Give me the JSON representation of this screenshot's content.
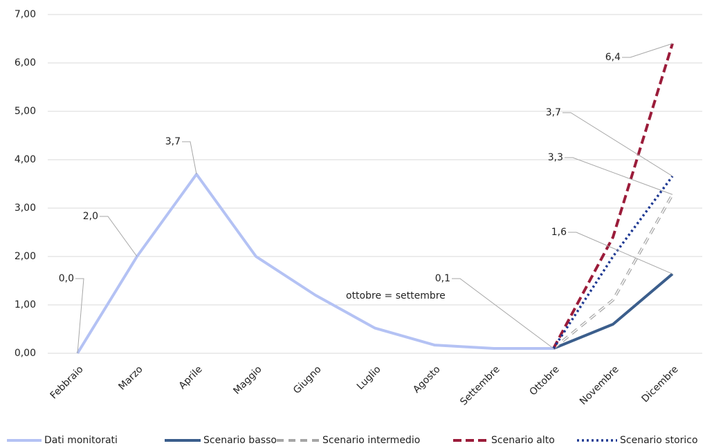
{
  "chart_data": {
    "type": "line",
    "categories": [
      "Febbraio",
      "Marzo",
      "Aprile",
      "Maggio",
      "Giugno",
      "Luglio",
      "Agosto",
      "Settembre",
      "Ottobre",
      "Novembre",
      "Dicembre"
    ],
    "series": [
      {
        "name": "Dati monitorati",
        "color": "#b4c2f4",
        "style": "solid",
        "values": [
          0.0,
          2.0,
          3.7,
          2.0,
          1.2,
          0.52,
          0.17,
          0.1,
          0.1,
          null,
          null
        ],
        "value_labels": [
          "0,0",
          "2,0",
          "3,7",
          null,
          null,
          null,
          null,
          null,
          "0,1",
          null,
          null
        ]
      },
      {
        "name": "Scenario basso",
        "color": "#3b5e8c",
        "style": "solid",
        "values": [
          null,
          null,
          null,
          null,
          null,
          null,
          null,
          null,
          0.1,
          0.6,
          1.64
        ],
        "value_labels": [
          null,
          null,
          null,
          null,
          null,
          null,
          null,
          null,
          null,
          null,
          "1,6"
        ]
      },
      {
        "name": "Scenario intermedio",
        "color": "#a6a6a6",
        "style": "dashed-light",
        "values": [
          null,
          null,
          null,
          null,
          null,
          null,
          null,
          null,
          0.1,
          1.1,
          3.28
        ],
        "value_labels": [
          null,
          null,
          null,
          null,
          null,
          null,
          null,
          null,
          null,
          null,
          "3,3"
        ]
      },
      {
        "name": "Scenario alto",
        "color": "#9b1c3a",
        "style": "dashed",
        "values": [
          null,
          null,
          null,
          null,
          null,
          null,
          null,
          null,
          0.1,
          2.4,
          6.4
        ],
        "value_labels": [
          null,
          null,
          null,
          null,
          null,
          null,
          null,
          null,
          null,
          null,
          "6,4"
        ]
      },
      {
        "name": "Scenario storico",
        "color": "#1f3a93",
        "style": "dotted",
        "values": [
          null,
          null,
          null,
          null,
          null,
          null,
          null,
          null,
          0.1,
          2.0,
          3.66
        ],
        "value_labels": [
          null,
          null,
          null,
          null,
          null,
          null,
          null,
          null,
          null,
          null,
          "3,7"
        ]
      }
    ],
    "annotations": [
      "ottobre = settembre"
    ],
    "ylim": [
      0,
      7
    ],
    "yticks": [
      {
        "value": 0,
        "label": "0,00"
      },
      {
        "value": 1,
        "label": "1,00"
      },
      {
        "value": 2,
        "label": "2,00"
      },
      {
        "value": 3,
        "label": "3,00"
      },
      {
        "value": 4,
        "label": "4,00"
      },
      {
        "value": 5,
        "label": "5,00"
      },
      {
        "value": 6,
        "label": "6,00"
      },
      {
        "value": 7,
        "label": "7,00"
      }
    ],
    "grid": true,
    "legend": "bottom"
  }
}
